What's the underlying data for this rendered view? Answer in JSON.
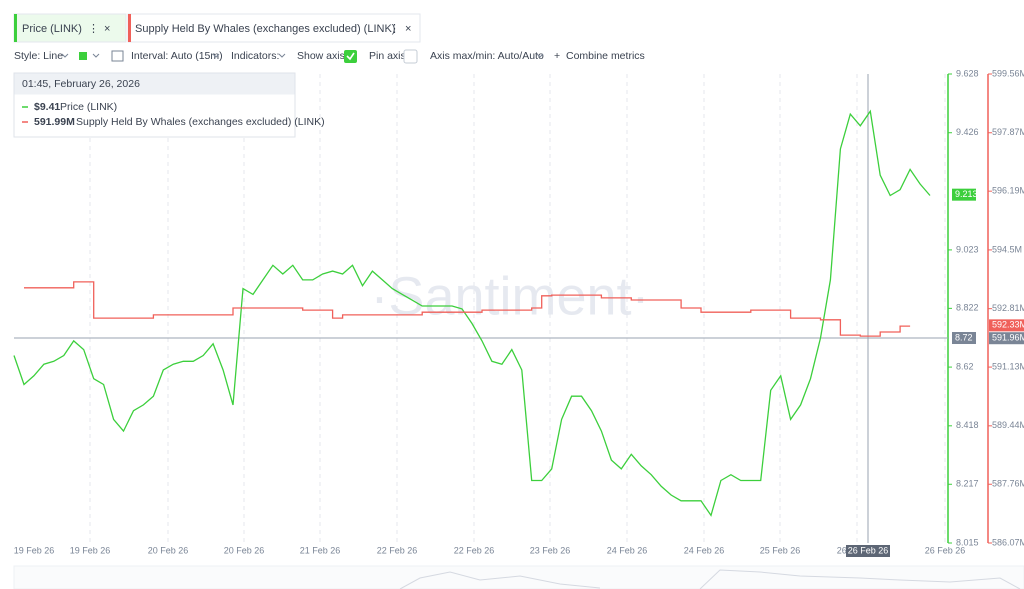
{
  "ui": {
    "tabs": [
      "Price (LINK)",
      "Supply Held By Whales (exchanges excluded) (LINK)"
    ],
    "toolbar": {
      "style": "Style: Line",
      "interval": "Interval: Auto (15m)",
      "indicators": "Indicators:",
      "show_axis": "Show axis",
      "pin_axis": "Pin axis",
      "axis_range": "Axis max/min: Auto/Auto",
      "combine": "Combine metrics"
    },
    "watermark": "·Santiment·"
  },
  "chart_data": {
    "type": "line",
    "x_labels": [
      "19 Feb 26",
      "19 Feb 26",
      "20 Feb 26",
      "20 Feb 26",
      "21 Feb 26",
      "22 Feb 26",
      "22 Feb 26",
      "23 Feb 26",
      "24 Feb 26",
      "24 Feb 26",
      "25 Feb 26",
      "26 Feb 26",
      "26 Feb 26"
    ],
    "series": [
      {
        "name": "Price (LINK)",
        "color": "#3ccf3c",
        "values": [
          8.66,
          8.56,
          8.59,
          8.63,
          8.64,
          8.66,
          8.71,
          8.68,
          8.58,
          8.56,
          8.44,
          8.4,
          8.47,
          8.49,
          8.52,
          8.61,
          8.63,
          8.64,
          8.64,
          8.66,
          8.7,
          8.61,
          8.49,
          8.89,
          8.87,
          8.92,
          8.97,
          8.94,
          8.97,
          8.92,
          8.92,
          8.94,
          8.95,
          8.94,
          8.97,
          8.9,
          8.95,
          8.92,
          8.89,
          8.87,
          8.85,
          8.83,
          8.83,
          8.83,
          8.83,
          8.82,
          8.77,
          8.71,
          8.64,
          8.63,
          8.68,
          8.61,
          8.23,
          8.23,
          8.27,
          8.44,
          8.52,
          8.52,
          8.47,
          8.4,
          8.3,
          8.27,
          8.32,
          8.28,
          8.25,
          8.21,
          8.18,
          8.16,
          8.16,
          8.16,
          8.11,
          8.23,
          8.25,
          8.23,
          8.23,
          8.23,
          8.54,
          8.59,
          8.44,
          8.49,
          8.58,
          8.72,
          8.92,
          9.37,
          9.49,
          9.45,
          9.5,
          9.28,
          9.21,
          9.23,
          9.3,
          9.25,
          9.21
        ]
      },
      {
        "name": "Supply Held By Whales (exchanges excluded) (LINK)",
        "color": "#f0605a",
        "axis": "y2",
        "values": [
          null,
          593.41,
          593.41,
          593.41,
          593.41,
          593.41,
          593.58,
          593.58,
          592.54,
          592.54,
          592.54,
          592.54,
          592.54,
          592.54,
          592.63,
          592.63,
          592.63,
          592.63,
          592.63,
          592.63,
          592.63,
          592.63,
          592.83,
          592.83,
          592.83,
          592.83,
          592.83,
          592.83,
          592.83,
          592.77,
          592.77,
          592.77,
          592.54,
          592.63,
          592.63,
          592.63,
          592.63,
          592.63,
          592.63,
          592.63,
          592.63,
          592.71,
          592.71,
          592.71,
          592.71,
          592.71,
          592.71,
          592.77,
          592.77,
          592.77,
          592.77,
          592.77,
          592.83,
          593.18,
          593.2,
          593.2,
          593.2,
          593.2,
          593.2,
          593.12,
          593.12,
          593.12,
          593.06,
          593.06,
          593.06,
          593.06,
          593.06,
          592.83,
          592.83,
          592.71,
          592.71,
          592.71,
          592.71,
          592.71,
          592.77,
          592.77,
          592.77,
          592.77,
          592.54,
          592.54,
          592.54,
          592.49,
          592.49,
          592.05,
          592.05,
          592.02,
          592.02,
          592.14,
          592.14,
          592.31,
          592.31,
          null,
          null
        ]
      }
    ],
    "ylim": [
      8.015,
      9.628
    ],
    "yticks": [
      9.628,
      9.426,
      9.023,
      8.822,
      8.62,
      8.418,
      8.217,
      8.015
    ],
    "y2lim": [
      586.07,
      599.56
    ],
    "y2ticks": [
      {
        "value": 599.56,
        "label": "599.56M"
      },
      {
        "value": 597.87,
        "label": "597.87M"
      },
      {
        "value": 596.19,
        "label": "596.19M"
      },
      {
        "value": 594.5,
        "label": "594.5M"
      },
      {
        "value": 592.81,
        "label": "592.81M"
      },
      {
        "value": 591.13,
        "label": "591.13M"
      },
      {
        "value": 589.44,
        "label": "589.44M"
      },
      {
        "value": 587.76,
        "label": "587.76M"
      },
      {
        "value": 586.07,
        "label": "586.07M"
      }
    ],
    "markers": {
      "price_last": 9.213,
      "price_cursor": 8.72,
      "supply_last": {
        "value": 592.33,
        "label": "592.33M"
      },
      "supply_cursor": {
        "value": 591.96,
        "label": "591.96M"
      },
      "cursor_date": "26 Feb 26"
    },
    "tooltip": {
      "date": "01:45, February 26, 2026",
      "values": [
        9.41,
        591.99
      ],
      "value_labels": [
        "$9.41",
        "591.99M"
      ]
    }
  }
}
